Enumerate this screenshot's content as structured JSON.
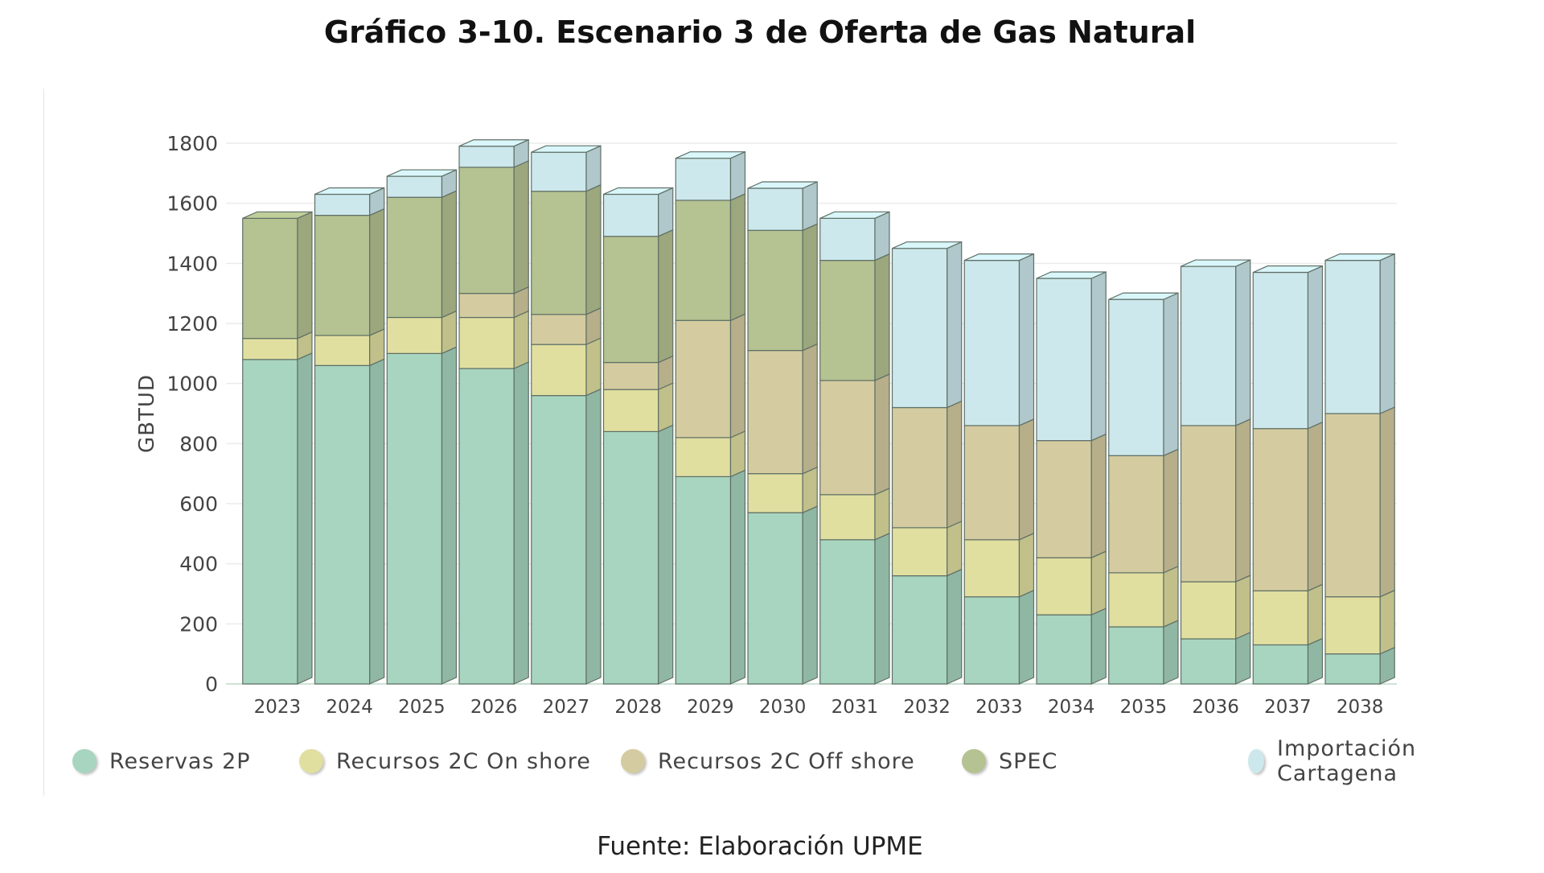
{
  "header": {
    "title": "Gráfico 3-10. Escenario 3 de Oferta de Gas Natural"
  },
  "footer": {
    "source": "Fuente: Elaboración UPME"
  },
  "chart_data": {
    "type": "bar",
    "stacked": true,
    "style": "3d",
    "title": "",
    "xlabel": "",
    "ylabel": "GBTUD",
    "ylim": [
      0,
      1800
    ],
    "yticks": [
      0,
      200,
      400,
      600,
      800,
      1000,
      1200,
      1400,
      1600,
      1800
    ],
    "grid": true,
    "legend_position": "bottom",
    "categories": [
      "2023",
      "2024",
      "2025",
      "2026",
      "2027",
      "2028",
      "2029",
      "2030",
      "2031",
      "2032",
      "2033",
      "2034",
      "2035",
      "2036",
      "2037",
      "2038"
    ],
    "series": [
      {
        "name": "Reservas 2P",
        "color": "#a8d5bf",
        "values": [
          1080,
          1060,
          1100,
          1050,
          960,
          840,
          690,
          570,
          480,
          360,
          290,
          230,
          190,
          150,
          130,
          100
        ]
      },
      {
        "name": "Recursos 2C On shore",
        "color": "#e0dfa0",
        "values": [
          70,
          100,
          120,
          170,
          170,
          140,
          130,
          130,
          150,
          160,
          190,
          190,
          180,
          190,
          180,
          190
        ]
      },
      {
        "name": "Recursos 2C Off shore",
        "color": "#d4ccA0",
        "values": [
          0,
          0,
          0,
          80,
          100,
          90,
          390,
          410,
          380,
          400,
          380,
          390,
          390,
          520,
          540,
          610
        ]
      },
      {
        "name": "SPEC",
        "color": "#b5c291",
        "values": [
          400,
          400,
          400,
          420,
          410,
          420,
          400,
          400,
          400,
          0,
          0,
          0,
          0,
          0,
          0,
          0
        ]
      },
      {
        "name": "Importación Cartagena",
        "color": "#cde8ec",
        "values": [
          0,
          70,
          70,
          70,
          130,
          140,
          140,
          140,
          140,
          530,
          550,
          540,
          520,
          530,
          520,
          510
        ]
      }
    ]
  }
}
